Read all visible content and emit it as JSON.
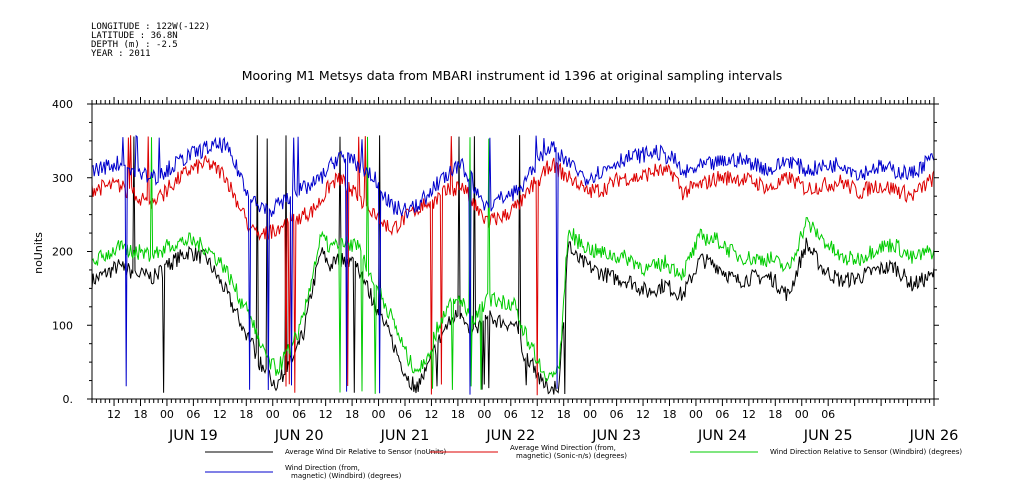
{
  "meta_lines": [
    "LONGITUDE : 122W(-122)",
    "LATITUDE : 36.8N",
    "DEPTH (m) : -2.5",
    "YEAR : 2011"
  ],
  "chart_data": {
    "type": "line",
    "title": "Mooring M1 Metsys data from MBARI instrument id 1396 at original sampling intervals",
    "ylabel": "noUnits",
    "xlabel": "",
    "ylim": [
      0,
      400
    ],
    "y_ticks": [
      0,
      100,
      200,
      300,
      400
    ],
    "y_tick_labels": [
      "0.",
      "100",
      "200",
      "300",
      "400"
    ],
    "x_range_hours": [
      0,
      191
    ],
    "hour_tick_labels": [
      "12",
      "18",
      "00",
      "06",
      "12",
      "18",
      "00",
      "06",
      "12",
      "18",
      "00",
      "06",
      "12",
      "18",
      "00",
      "06",
      "12",
      "18",
      "00",
      "06",
      "12",
      "18",
      "00",
      "06",
      "12",
      "18",
      "00",
      "06"
    ],
    "day_labels": [
      "JUN 19",
      "JUN 20",
      "JUN 21",
      "JUN 22",
      "JUN 23",
      "JUN 24",
      "JUN 25",
      "JUN 26"
    ],
    "grid": false,
    "legend_position": "bottom",
    "series": [
      {
        "name": "Average Wind Dir Relative to Sensor (noUnits)",
        "color": "#000000",
        "keys": [
          [
            0,
            160
          ],
          [
            6,
            180
          ],
          [
            10,
            170
          ],
          [
            14,
            165
          ],
          [
            18,
            185
          ],
          [
            22,
            200
          ],
          [
            26,
            190
          ],
          [
            30,
            150
          ],
          [
            34,
            100
          ],
          [
            36,
            80
          ],
          [
            38,
            50
          ],
          [
            40,
            30
          ],
          [
            42,
            20
          ],
          [
            44,
            40
          ],
          [
            46,
            60
          ],
          [
            48,
            90
          ],
          [
            50,
            150
          ],
          [
            52,
            200
          ],
          [
            54,
            180
          ],
          [
            56,
            190
          ],
          [
            60,
            185
          ],
          [
            64,
            130
          ],
          [
            68,
            80
          ],
          [
            70,
            50
          ],
          [
            72,
            25
          ],
          [
            74,
            20
          ],
          [
            76,
            40
          ],
          [
            78,
            70
          ],
          [
            80,
            95
          ],
          [
            82,
            110
          ],
          [
            84,
            120
          ],
          [
            86,
            80
          ],
          [
            88,
            100
          ],
          [
            90,
            110
          ],
          [
            96,
            100
          ],
          [
            98,
            60
          ],
          [
            100,
            50
          ],
          [
            102,
            20
          ],
          [
            104,
            15
          ],
          [
            106,
            20
          ],
          [
            108,
            210
          ],
          [
            110,
            190
          ],
          [
            114,
            175
          ],
          [
            118,
            165
          ],
          [
            122,
            160
          ],
          [
            126,
            145
          ],
          [
            130,
            155
          ],
          [
            134,
            140
          ],
          [
            138,
            190
          ],
          [
            142,
            180
          ],
          [
            146,
            160
          ],
          [
            150,
            165
          ],
          [
            154,
            165
          ],
          [
            158,
            140
          ],
          [
            162,
            210
          ],
          [
            166,
            175
          ],
          [
            170,
            160
          ],
          [
            174,
            165
          ],
          [
            178,
            175
          ],
          [
            182,
            180
          ],
          [
            186,
            155
          ],
          [
            190,
            165
          ],
          [
            191,
            170
          ]
        ]
      },
      {
        "name": "Average Wind Direction (from, magnetic) (Sonic-n/s) (degrees)",
        "color": "#dd0000",
        "keys": [
          [
            0,
            285
          ],
          [
            6,
            290
          ],
          [
            10,
            275
          ],
          [
            14,
            265
          ],
          [
            18,
            290
          ],
          [
            22,
            310
          ],
          [
            26,
            320
          ],
          [
            30,
            305
          ],
          [
            34,
            255
          ],
          [
            36,
            230
          ],
          [
            38,
            220
          ],
          [
            40,
            225
          ],
          [
            44,
            240
          ],
          [
            48,
            250
          ],
          [
            50,
            255
          ],
          [
            52,
            270
          ],
          [
            54,
            290
          ],
          [
            56,
            300
          ],
          [
            60,
            275
          ],
          [
            64,
            255
          ],
          [
            66,
            240
          ],
          [
            68,
            230
          ],
          [
            72,
            250
          ],
          [
            74,
            260
          ],
          [
            76,
            265
          ],
          [
            78,
            270
          ],
          [
            80,
            280
          ],
          [
            82,
            285
          ],
          [
            84,
            290
          ],
          [
            86,
            270
          ],
          [
            88,
            250
          ],
          [
            90,
            240
          ],
          [
            92,
            245
          ],
          [
            94,
            250
          ],
          [
            96,
            260
          ],
          [
            98,
            270
          ],
          [
            100,
            290
          ],
          [
            102,
            300
          ],
          [
            104,
            320
          ],
          [
            106,
            310
          ],
          [
            108,
            300
          ],
          [
            110,
            295
          ],
          [
            112,
            280
          ],
          [
            116,
            285
          ],
          [
            120,
            300
          ],
          [
            124,
            300
          ],
          [
            128,
            310
          ],
          [
            132,
            305
          ],
          [
            134,
            280
          ],
          [
            138,
            290
          ],
          [
            142,
            300
          ],
          [
            146,
            300
          ],
          [
            150,
            295
          ],
          [
            154,
            285
          ],
          [
            158,
            300
          ],
          [
            162,
            285
          ],
          [
            166,
            290
          ],
          [
            170,
            295
          ],
          [
            174,
            280
          ],
          [
            178,
            290
          ],
          [
            182,
            285
          ],
          [
            186,
            275
          ],
          [
            190,
            295
          ],
          [
            191,
            300
          ]
        ]
      },
      {
        "name": "Wind Direction Relative to Sensor (Windbird) (degrees)",
        "color": "#00cc00",
        "keys": [
          [
            0,
            185
          ],
          [
            6,
            205
          ],
          [
            10,
            200
          ],
          [
            14,
            195
          ],
          [
            18,
            210
          ],
          [
            22,
            215
          ],
          [
            26,
            205
          ],
          [
            30,
            180
          ],
          [
            34,
            130
          ],
          [
            36,
            110
          ],
          [
            38,
            80
          ],
          [
            40,
            50
          ],
          [
            42,
            40
          ],
          [
            44,
            60
          ],
          [
            46,
            80
          ],
          [
            48,
            110
          ],
          [
            50,
            170
          ],
          [
            52,
            220
          ],
          [
            54,
            205
          ],
          [
            56,
            210
          ],
          [
            60,
            210
          ],
          [
            64,
            160
          ],
          [
            68,
            110
          ],
          [
            70,
            80
          ],
          [
            72,
            50
          ],
          [
            74,
            40
          ],
          [
            76,
            60
          ],
          [
            78,
            90
          ],
          [
            80,
            120
          ],
          [
            82,
            130
          ],
          [
            84,
            135
          ],
          [
            86,
            100
          ],
          [
            88,
            120
          ],
          [
            90,
            135
          ],
          [
            96,
            130
          ],
          [
            98,
            90
          ],
          [
            100,
            70
          ],
          [
            102,
            40
          ],
          [
            104,
            30
          ],
          [
            106,
            40
          ],
          [
            108,
            230
          ],
          [
            110,
            215
          ],
          [
            114,
            200
          ],
          [
            118,
            195
          ],
          [
            122,
            190
          ],
          [
            126,
            175
          ],
          [
            130,
            185
          ],
          [
            134,
            170
          ],
          [
            138,
            220
          ],
          [
            142,
            215
          ],
          [
            146,
            195
          ],
          [
            150,
            190
          ],
          [
            154,
            190
          ],
          [
            158,
            175
          ],
          [
            162,
            240
          ],
          [
            166,
            215
          ],
          [
            170,
            190
          ],
          [
            174,
            190
          ],
          [
            178,
            205
          ],
          [
            182,
            210
          ],
          [
            186,
            190
          ],
          [
            190,
            200
          ],
          [
            191,
            200
          ]
        ]
      },
      {
        "name": "Wind Direction (from, magnetic) (Windbird) (degrees)",
        "color": "#0000cc",
        "keys": [
          [
            0,
            310
          ],
          [
            6,
            320
          ],
          [
            10,
            305
          ],
          [
            14,
            300
          ],
          [
            18,
            315
          ],
          [
            22,
            330
          ],
          [
            26,
            340
          ],
          [
            30,
            345
          ],
          [
            34,
            300
          ],
          [
            36,
            270
          ],
          [
            38,
            260
          ],
          [
            40,
            255
          ],
          [
            44,
            270
          ],
          [
            48,
            285
          ],
          [
            50,
            290
          ],
          [
            52,
            300
          ],
          [
            54,
            315
          ],
          [
            56,
            330
          ],
          [
            60,
            320
          ],
          [
            64,
            300
          ],
          [
            66,
            280
          ],
          [
            68,
            260
          ],
          [
            72,
            255
          ],
          [
            74,
            265
          ],
          [
            76,
            275
          ],
          [
            78,
            290
          ],
          [
            80,
            300
          ],
          [
            82,
            310
          ],
          [
            84,
            315
          ],
          [
            86,
            300
          ],
          [
            88,
            270
          ],
          [
            90,
            260
          ],
          [
            92,
            270
          ],
          [
            94,
            275
          ],
          [
            96,
            280
          ],
          [
            98,
            290
          ],
          [
            100,
            310
          ],
          [
            102,
            330
          ],
          [
            104,
            345
          ],
          [
            106,
            330
          ],
          [
            108,
            320
          ],
          [
            110,
            310
          ],
          [
            112,
            300
          ],
          [
            116,
            310
          ],
          [
            120,
            325
          ],
          [
            124,
            330
          ],
          [
            128,
            335
          ],
          [
            132,
            325
          ],
          [
            134,
            305
          ],
          [
            138,
            315
          ],
          [
            142,
            320
          ],
          [
            146,
            325
          ],
          [
            150,
            320
          ],
          [
            154,
            310
          ],
          [
            158,
            325
          ],
          [
            162,
            310
          ],
          [
            166,
            315
          ],
          [
            170,
            320
          ],
          [
            174,
            305
          ],
          [
            178,
            315
          ],
          [
            182,
            310
          ],
          [
            186,
            305
          ],
          [
            190,
            325
          ],
          [
            191,
            325
          ]
        ]
      }
    ]
  }
}
